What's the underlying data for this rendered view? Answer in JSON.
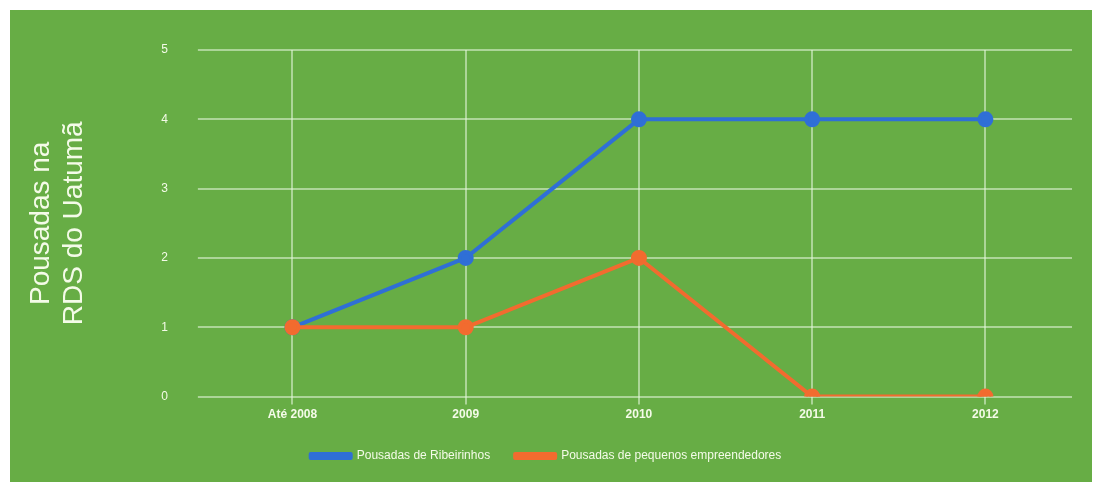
{
  "chart_data": {
    "type": "line",
    "ylabel": "Pousadas na\nRDS do Uatumã",
    "categories": [
      "Até 2008",
      "2009",
      "2010",
      "2011",
      "2012"
    ],
    "series": [
      {
        "name": "Pousadas de Ribeirinhos",
        "color": "#2f6fd6",
        "values": [
          1,
          2,
          4,
          4,
          4
        ]
      },
      {
        "name": "Pousadas de pequenos empreendedores",
        "color": "#f26b2f",
        "values": [
          1,
          1,
          2,
          0,
          0
        ]
      }
    ],
    "ylim": [
      0,
      5
    ],
    "yticks": [
      0,
      1,
      2,
      3,
      4,
      5
    ],
    "grid": true,
    "legend": "bottom",
    "marker": "circle",
    "line_style": "solid"
  }
}
